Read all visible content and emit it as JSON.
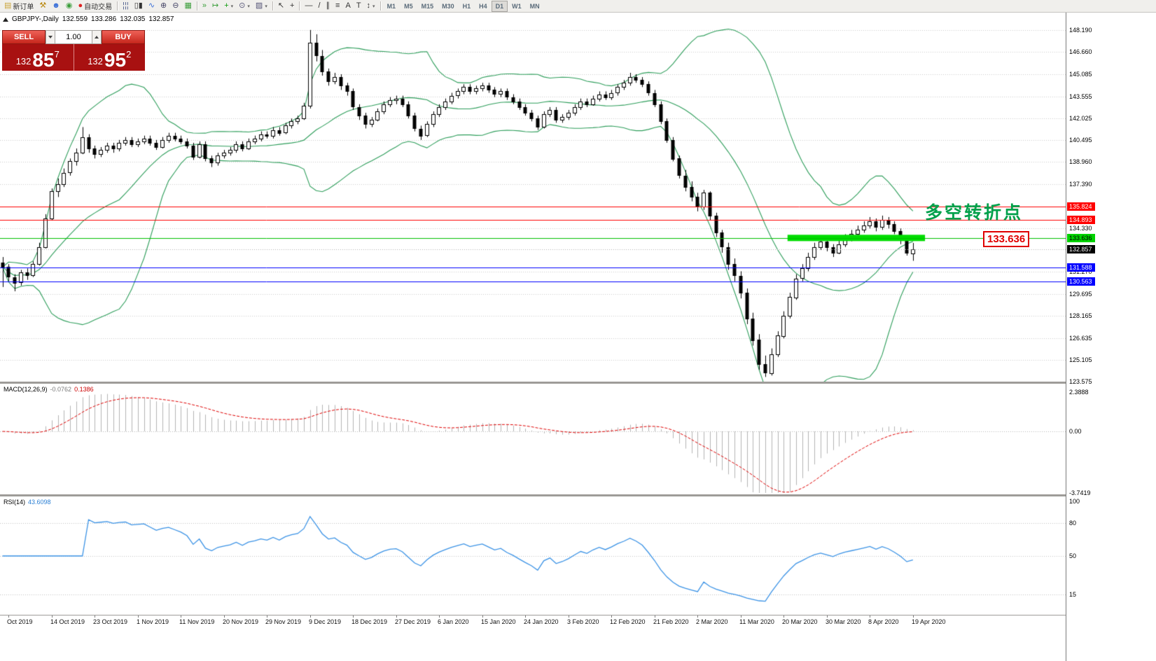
{
  "toolbar": {
    "dropdown_caret": "▾",
    "items": [
      {
        "type": "button",
        "name": "new-order",
        "glyph": "▤",
        "color": "#caa53c",
        "label": "新订单"
      },
      {
        "type": "button",
        "name": "tools-hammer",
        "glyph": "⚒",
        "color": "#b8860b"
      },
      {
        "type": "button",
        "name": "market-watch",
        "glyph": "☻",
        "color": "#3a6fd8"
      },
      {
        "type": "button",
        "name": "alerts-sound",
        "glyph": "◉",
        "color": "#3b9e3b"
      },
      {
        "type": "button",
        "name": "auto-trading",
        "glyph": "●",
        "color": "#dd2222",
        "label": "自动交易"
      },
      {
        "type": "sep"
      },
      {
        "type": "button",
        "name": "bar-chart-mode",
        "glyph": "¦¦¦",
        "color": "#4a5a8a"
      },
      {
        "type": "button",
        "name": "candlestick-mode",
        "glyph": "▯▮",
        "color": "#333333"
      },
      {
        "type": "button",
        "name": "line-chart-mode",
        "glyph": "∿",
        "color": "#3a6fd8"
      },
      {
        "type": "button",
        "name": "zoom-in",
        "glyph": "⊕",
        "color": "#444466"
      },
      {
        "type": "button",
        "name": "zoom-out",
        "glyph": "⊖",
        "color": "#444466"
      },
      {
        "type": "button",
        "name": "grid-toggle",
        "glyph": "▦",
        "color": "#3b9e3b"
      },
      {
        "type": "sep"
      },
      {
        "type": "button",
        "name": "auto-scroll",
        "glyph": "»",
        "color": "#3b9e3b"
      },
      {
        "type": "button",
        "name": "chart-shift",
        "glyph": "↦",
        "color": "#3b9e3b"
      },
      {
        "type": "button",
        "name": "indicators",
        "glyph": "+",
        "color": "#0a9a0a",
        "dropdown": true
      },
      {
        "type": "button",
        "name": "periods",
        "glyph": "⊙",
        "color": "#555577",
        "dropdown": true
      },
      {
        "type": "button",
        "name": "templates",
        "glyph": "▨",
        "color": "#555577",
        "dropdown": true
      },
      {
        "type": "sep"
      },
      {
        "type": "button",
        "name": "cursor",
        "glyph": "↖",
        "color": "#333333"
      },
      {
        "type": "button",
        "name": "crosshair",
        "glyph": "+",
        "color": "#333333"
      },
      {
        "type": "sep"
      },
      {
        "type": "button",
        "name": "horizontal-line-tool",
        "glyph": "—",
        "color": "#333333"
      },
      {
        "type": "button",
        "name": "trendline-tool",
        "glyph": "/",
        "color": "#333333"
      },
      {
        "type": "button",
        "name": "channel-tool",
        "glyph": "∥",
        "color": "#333333"
      },
      {
        "type": "button",
        "name": "fibonacci-tool",
        "glyph": "≡",
        "color": "#333333"
      },
      {
        "type": "button",
        "name": "text-tool",
        "glyph": "A",
        "color": "#333333"
      },
      {
        "type": "button",
        "name": "label-tool",
        "glyph": "T",
        "color": "#333333"
      },
      {
        "type": "button",
        "name": "arrows-tool",
        "glyph": "↕",
        "color": "#333333",
        "dropdown": true
      },
      {
        "type": "sep"
      },
      {
        "type": "tf",
        "label": "M1"
      },
      {
        "type": "tf",
        "label": "M5"
      },
      {
        "type": "tf",
        "label": "M15"
      },
      {
        "type": "tf",
        "label": "M30"
      },
      {
        "type": "tf",
        "label": "H1"
      },
      {
        "type": "tf",
        "label": "H4"
      },
      {
        "type": "tf",
        "label": "D1",
        "active": true
      },
      {
        "type": "tf",
        "label": "W1"
      },
      {
        "type": "tf",
        "label": "MN"
      }
    ]
  },
  "header": {
    "symbol": "GBPJPY-,Daily",
    "open": "132.559",
    "high": "133.286",
    "low": "132.035",
    "close": "132.857"
  },
  "trade": {
    "sell_label": "SELL",
    "buy_label": "BUY",
    "volume": "1.00",
    "bid": {
      "prefix": "132",
      "big": "85",
      "sup": "7"
    },
    "ask": {
      "prefix": "132",
      "big": "95",
      "sup": "2"
    }
  },
  "annotation": {
    "text": "多空转折点",
    "color": "#00a04a"
  },
  "callout": {
    "text": "133.636",
    "color": "#e00000"
  },
  "macd_panel": {
    "title": "MACD(12,26,9)",
    "value1": "-0.0762",
    "value2": "0.1386"
  },
  "rsi_panel": {
    "title": "RSI(14)",
    "value": "43.6098"
  },
  "chart_data": {
    "type": "candlestick",
    "symbol": "GBPJPY-",
    "timeframe": "Daily",
    "price_axis": {
      "min": 123.575,
      "max": 148.19,
      "gridlines": [
        "148.190",
        "146.660",
        "145.085",
        "143.555",
        "142.025",
        "140.495",
        "138.960",
        "137.390",
        "134.330",
        "131.270",
        "129.695",
        "128.165",
        "126.635",
        "125.105",
        "123.575"
      ]
    },
    "x_axis": {
      "first_candle_index": 1,
      "step": 7,
      "labels": [
        "Oct 2019",
        "14 Oct 2019",
        "23 Oct 2019",
        "1 Nov 2019",
        "11 Nov 2019",
        "20 Nov 2019",
        "29 Nov 2019",
        "9 Dec 2019",
        "18 Dec 2019",
        "27 Dec 2019",
        "6 Jan 2020",
        "15 Jan 2020",
        "24 Jan 2020",
        "3 Feb 2020",
        "12 Feb 2020",
        "21 Feb 2020",
        "2 Mar 2020",
        "11 Mar 2020",
        "20 Mar 2020",
        "30 Mar 2020",
        "8 Apr 2020",
        "19 Apr 2020"
      ]
    },
    "candles": [
      [
        131.9,
        132.3,
        130.2,
        131.6
      ],
      [
        131.6,
        131.8,
        130.6,
        130.9
      ],
      [
        130.9,
        131.1,
        129.9,
        130.5
      ],
      [
        130.5,
        131.4,
        130.3,
        131.2
      ],
      [
        131.2,
        131.5,
        130.7,
        131
      ],
      [
        131,
        132,
        130.9,
        131.8
      ],
      [
        131.8,
        133.3,
        131.7,
        133
      ],
      [
        133,
        135.3,
        132.9,
        135
      ],
      [
        135,
        137.1,
        134.9,
        136.9
      ],
      [
        136.9,
        137.8,
        136.5,
        137.4
      ],
      [
        137.4,
        138.5,
        137.2,
        138.2
      ],
      [
        138.2,
        139.2,
        138,
        139
      ],
      [
        139,
        139.9,
        138.7,
        139.6
      ],
      [
        139.6,
        141.4,
        139.5,
        140.7
      ],
      [
        140.7,
        140.9,
        139.6,
        139.9
      ],
      [
        139.9,
        140.1,
        139.2,
        139.5
      ],
      [
        139.5,
        140,
        139.3,
        139.8
      ],
      [
        139.8,
        140.3,
        139.6,
        140.1
      ],
      [
        140.1,
        140.3,
        139.6,
        139.9
      ],
      [
        139.9,
        140.5,
        139.7,
        140.3
      ],
      [
        140.3,
        140.7,
        140.1,
        140.5
      ],
      [
        140.5,
        140.7,
        140,
        140.2
      ],
      [
        140.2,
        140.6,
        140,
        140.4
      ],
      [
        140.4,
        140.8,
        140.2,
        140.6
      ],
      [
        140.6,
        140.8,
        140.1,
        140.3
      ],
      [
        140.3,
        140.5,
        139.8,
        140
      ],
      [
        140,
        140.7,
        139.9,
        140.5
      ],
      [
        140.5,
        141,
        140.3,
        140.8
      ],
      [
        140.8,
        141,
        140.4,
        140.6
      ],
      [
        140.6,
        140.8,
        140.2,
        140.4
      ],
      [
        140.4,
        140.6,
        139.9,
        140.1
      ],
      [
        140.1,
        140.3,
        139.1,
        139.3
      ],
      [
        139.3,
        140.4,
        139.2,
        140.2
      ],
      [
        140.2,
        140.4,
        139,
        139.2
      ],
      [
        139.2,
        139.4,
        138.6,
        138.9
      ],
      [
        138.9,
        139.6,
        138.7,
        139.4
      ],
      [
        139.4,
        139.8,
        139.2,
        139.6
      ],
      [
        139.6,
        140,
        139.4,
        139.8
      ],
      [
        139.8,
        140.4,
        139.6,
        140.2
      ],
      [
        140.2,
        140.4,
        139.7,
        139.9
      ],
      [
        139.9,
        140.6,
        139.8,
        140.4
      ],
      [
        140.4,
        140.8,
        140.2,
        140.6
      ],
      [
        140.6,
        141.1,
        140.4,
        140.9
      ],
      [
        140.9,
        141.1,
        140.6,
        140.8
      ],
      [
        140.8,
        141.4,
        140.6,
        141.2
      ],
      [
        141.2,
        141.4,
        140.8,
        141
      ],
      [
        141,
        141.7,
        140.9,
        141.5
      ],
      [
        141.5,
        142,
        141.3,
        141.8
      ],
      [
        141.8,
        142.2,
        141.6,
        142
      ],
      [
        142,
        143.1,
        141.9,
        142.9
      ],
      [
        142.9,
        148.2,
        142.7,
        147.3
      ],
      [
        147.3,
        147.9,
        146,
        146.4
      ],
      [
        146.4,
        146.8,
        145,
        145.3
      ],
      [
        145.3,
        145.5,
        144.3,
        144.6
      ],
      [
        144.6,
        145.2,
        144.4,
        144.9
      ],
      [
        144.9,
        145.1,
        144,
        144.3
      ],
      [
        144.3,
        144.5,
        143.6,
        143.9
      ],
      [
        143.9,
        144.1,
        142.6,
        142.8
      ],
      [
        142.8,
        143,
        141.9,
        142.2
      ],
      [
        142.2,
        142.4,
        141.3,
        141.6
      ],
      [
        141.6,
        142.1,
        141.4,
        141.9
      ],
      [
        141.9,
        142.7,
        141.8,
        142.5
      ],
      [
        142.5,
        143.2,
        142.3,
        143
      ],
      [
        143,
        143.5,
        142.8,
        143.3
      ],
      [
        143.3,
        143.6,
        143,
        143.4
      ],
      [
        143.4,
        143.6,
        142.8,
        143
      ],
      [
        143,
        143.2,
        142,
        142.2
      ],
      [
        142.2,
        142.4,
        141.1,
        141.3
      ],
      [
        141.3,
        141.5,
        140.5,
        140.8
      ],
      [
        140.8,
        141.8,
        140.7,
        141.6
      ],
      [
        141.6,
        142.5,
        141.4,
        142.3
      ],
      [
        142.3,
        143,
        142.1,
        142.8
      ],
      [
        142.8,
        143.4,
        142.6,
        143.2
      ],
      [
        143.2,
        143.8,
        143,
        143.6
      ],
      [
        143.6,
        144.1,
        143.4,
        143.9
      ],
      [
        143.9,
        144.4,
        143.7,
        144.2
      ],
      [
        144.2,
        144.4,
        143.7,
        143.9
      ],
      [
        143.9,
        144.3,
        143.7,
        144.1
      ],
      [
        144.1,
        144.5,
        143.9,
        144.3
      ],
      [
        144.3,
        144.5,
        143.8,
        144
      ],
      [
        144,
        144.2,
        143.5,
        143.7
      ],
      [
        143.7,
        144.1,
        143.5,
        143.9
      ],
      [
        143.9,
        144.1,
        143.3,
        143.5
      ],
      [
        143.5,
        143.7,
        143,
        143.2
      ],
      [
        143.2,
        143.4,
        142.6,
        142.8
      ],
      [
        142.8,
        143,
        142.2,
        142.4
      ],
      [
        142.4,
        142.6,
        141.8,
        142
      ],
      [
        142,
        142.2,
        141.2,
        141.4
      ],
      [
        141.4,
        142.5,
        141.3,
        142.3
      ],
      [
        142.3,
        142.8,
        142.1,
        142.6
      ],
      [
        142.6,
        142.8,
        141.7,
        141.9
      ],
      [
        141.9,
        142.3,
        141.7,
        142.1
      ],
      [
        142.1,
        142.6,
        141.9,
        142.4
      ],
      [
        142.4,
        143,
        142.2,
        142.8
      ],
      [
        142.8,
        143.4,
        142.6,
        143.2
      ],
      [
        143.2,
        143.4,
        142.8,
        143
      ],
      [
        143,
        143.6,
        142.9,
        143.4
      ],
      [
        143.4,
        143.9,
        143.2,
        143.7
      ],
      [
        143.7,
        143.9,
        143.3,
        143.5
      ],
      [
        143.5,
        144,
        143.3,
        143.8
      ],
      [
        143.8,
        144.4,
        143.6,
        144.2
      ],
      [
        144.2,
        144.7,
        144,
        144.5
      ],
      [
        144.5,
        145.2,
        144.3,
        144.9
      ],
      [
        144.9,
        145.1,
        144.5,
        144.7
      ],
      [
        144.7,
        144.9,
        144.2,
        144.4
      ],
      [
        144.4,
        144.6,
        143.6,
        143.8
      ],
      [
        143.8,
        144,
        142.8,
        143
      ],
      [
        143,
        143.2,
        141.6,
        141.8
      ],
      [
        141.8,
        142,
        140.3,
        140.5
      ],
      [
        140.5,
        140.7,
        139,
        139.2
      ],
      [
        139.2,
        139.4,
        137.8,
        138
      ],
      [
        138,
        138.4,
        136.9,
        137.2
      ],
      [
        137.2,
        137.6,
        136.2,
        136.5
      ],
      [
        136.5,
        136.8,
        135.5,
        135.8
      ],
      [
        135.8,
        137,
        135.6,
        136.8
      ],
      [
        136.8,
        136.9,
        134.9,
        135.2
      ],
      [
        135.2,
        135.4,
        133.7,
        134
      ],
      [
        134,
        134.2,
        132.6,
        133
      ],
      [
        133,
        133.3,
        131.4,
        131.8
      ],
      [
        131.8,
        132.2,
        130.6,
        131
      ],
      [
        131,
        131.3,
        129.4,
        129.8
      ],
      [
        129.8,
        130.1,
        127.6,
        128
      ],
      [
        128,
        128.4,
        126.1,
        126.5
      ],
      [
        126.5,
        126.9,
        124.4,
        124.8
      ],
      [
        124.8,
        125.4,
        123.9,
        124.2
      ],
      [
        124.2,
        125.9,
        124,
        125.5
      ],
      [
        125.5,
        127.1,
        125.3,
        126.8
      ],
      [
        126.8,
        128.5,
        126.6,
        128.2
      ],
      [
        128.2,
        129.8,
        128,
        129.5
      ],
      [
        129.5,
        131.1,
        129.3,
        130.8
      ],
      [
        130.8,
        131.8,
        130.6,
        131.5
      ],
      [
        131.5,
        132.6,
        131.3,
        132.3
      ],
      [
        132.3,
        133.3,
        132.1,
        133
      ],
      [
        133,
        133.7,
        132.8,
        133.4
      ],
      [
        133.4,
        133.6,
        132.7,
        133
      ],
      [
        133,
        133.2,
        132.3,
        132.6
      ],
      [
        132.6,
        133.5,
        132.5,
        133.2
      ],
      [
        133.2,
        133.9,
        133,
        133.6
      ],
      [
        133.6,
        134.2,
        133.4,
        133.9
      ],
      [
        133.9,
        134.5,
        133.7,
        134.2
      ],
      [
        134.2,
        134.8,
        134,
        134.5
      ],
      [
        134.5,
        135.1,
        134.3,
        134.8
      ],
      [
        134.8,
        135,
        134.1,
        134.4
      ],
      [
        134.4,
        135.2,
        134.2,
        134.9
      ],
      [
        134.9,
        135.1,
        134.3,
        134.6
      ],
      [
        134.6,
        134.8,
        133.9,
        134.1
      ],
      [
        134.1,
        134.3,
        133.2,
        133.5
      ],
      [
        133.5,
        133.7,
        132.4,
        132.6
      ],
      [
        132.559,
        133.286,
        132.035,
        132.857
      ]
    ],
    "bollinger": {
      "period": 20,
      "deviation": 2,
      "color": "#2e9e5b"
    },
    "hlines": [
      {
        "label": "135.824",
        "price": 135.824,
        "color": "#ff0000",
        "style": "solid",
        "tag_bg": "#ff0000",
        "tag_fg": "#ffffff"
      },
      {
        "label": "134.893",
        "price": 134.893,
        "color": "#ff0000",
        "style": "solid",
        "tag_bg": "#ff0000",
        "tag_fg": "#ffffff"
      },
      {
        "label": "133.636",
        "price": 133.636,
        "color": "#00c000",
        "style": "solid",
        "tag_bg": "#00d300",
        "tag_fg": "#000000"
      },
      {
        "label": "132.857",
        "price": 132.857,
        "color": "#b0b0b0",
        "style": "dot",
        "tag_bg": "#000000",
        "tag_fg": "#ffffff"
      },
      {
        "label": "131.588",
        "price": 131.588,
        "color": "#0000ff",
        "style": "solid",
        "tag_bg": "#0000ff",
        "tag_fg": "#ffffff"
      },
      {
        "label": "130.563",
        "price": 130.563,
        "color": "#0000ff",
        "style": "solid",
        "tag_bg": "#0000ff",
        "tag_fg": "#ffffff"
      }
    ],
    "support_band": {
      "price": 133.636,
      "x_start_frac": 0.739,
      "x_end_frac": 0.868,
      "color": "#00dd00",
      "thickness": 9
    },
    "macd": {
      "params": [
        12,
        26,
        9
      ],
      "bar_color": "#b4b4b4",
      "signal_color": "#e00000",
      "range": [
        -3.7419,
        2.3888
      ],
      "axis": [
        {
          "text": "2.3888",
          "v": 2.3888
        },
        {
          "text": "0.00",
          "v": 0
        },
        {
          "text": "-3.7419",
          "v": -3.7419
        }
      ]
    },
    "rsi": {
      "period": 14,
      "color": "#3b93e6",
      "levels": [
        80,
        50,
        15
      ],
      "axis": [
        {
          "text": "100",
          "v": 100
        },
        {
          "text": "80",
          "v": 80
        },
        {
          "text": "50",
          "v": 50
        },
        {
          "text": "15",
          "v": 15
        }
      ],
      "range": [
        0,
        100
      ]
    }
  }
}
